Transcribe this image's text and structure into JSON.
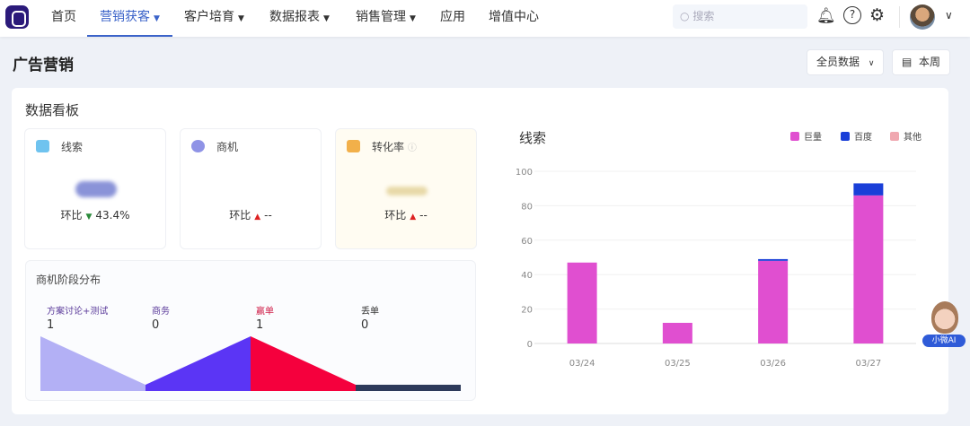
{
  "nav": {
    "items": [
      {
        "label": "首页",
        "dropdown": false
      },
      {
        "label": "营销获客",
        "dropdown": true,
        "active": true
      },
      {
        "label": "客户培育",
        "dropdown": true
      },
      {
        "label": "数据报表",
        "dropdown": true
      },
      {
        "label": "销售管理",
        "dropdown": true
      },
      {
        "label": "应用",
        "dropdown": false
      },
      {
        "label": "增值中心",
        "dropdown": false
      }
    ],
    "search_placeholder": "搜索",
    "icons": [
      "bell-icon",
      "help-icon",
      "gear-icon"
    ],
    "accent": "#3b63c9"
  },
  "page": {
    "title": "广告营销",
    "filter_label": "全员数据",
    "date_label": "本周"
  },
  "dashboard": {
    "title": "数据看板",
    "cards": [
      {
        "label": "线索",
        "compare_label": "环比",
        "trend": "down",
        "compare_value": "43.4%"
      },
      {
        "label": "商机",
        "compare_label": "环比",
        "trend": "up",
        "compare_value": "--"
      },
      {
        "label": "转化率",
        "compare_label": "环比",
        "trend": "up",
        "compare_value": "--"
      }
    ],
    "stages": {
      "title": "商机阶段分布",
      "items": [
        {
          "label": "方案讨论+测试",
          "value": "1",
          "color": "#b3b0f5"
        },
        {
          "label": "商务",
          "value": "0",
          "color": "#5b35f5"
        },
        {
          "label": "赢单",
          "value": "1",
          "color": "#f5003d"
        },
        {
          "label": "丢单",
          "value": "0",
          "color": "#2d3a5a"
        }
      ]
    }
  },
  "chart_data": {
    "type": "bar",
    "stacked": true,
    "title": "线索",
    "categories": [
      "03/24",
      "03/25",
      "03/26",
      "03/27"
    ],
    "series": [
      {
        "name": "巨量",
        "color": "#e04fd0",
        "values": [
          47,
          12,
          48,
          86
        ]
      },
      {
        "name": "百度",
        "color": "#1a3fd8",
        "values": [
          0,
          0,
          1,
          7
        ]
      },
      {
        "name": "其他",
        "color": "#f0a8b0",
        "values": [
          0,
          0,
          0,
          0
        ]
      }
    ],
    "ylim": [
      0,
      100
    ],
    "yticks": [
      0,
      20,
      40,
      60,
      80,
      100
    ],
    "legend": "top-right",
    "grid": true
  },
  "assistant": {
    "label": "小微AI"
  }
}
